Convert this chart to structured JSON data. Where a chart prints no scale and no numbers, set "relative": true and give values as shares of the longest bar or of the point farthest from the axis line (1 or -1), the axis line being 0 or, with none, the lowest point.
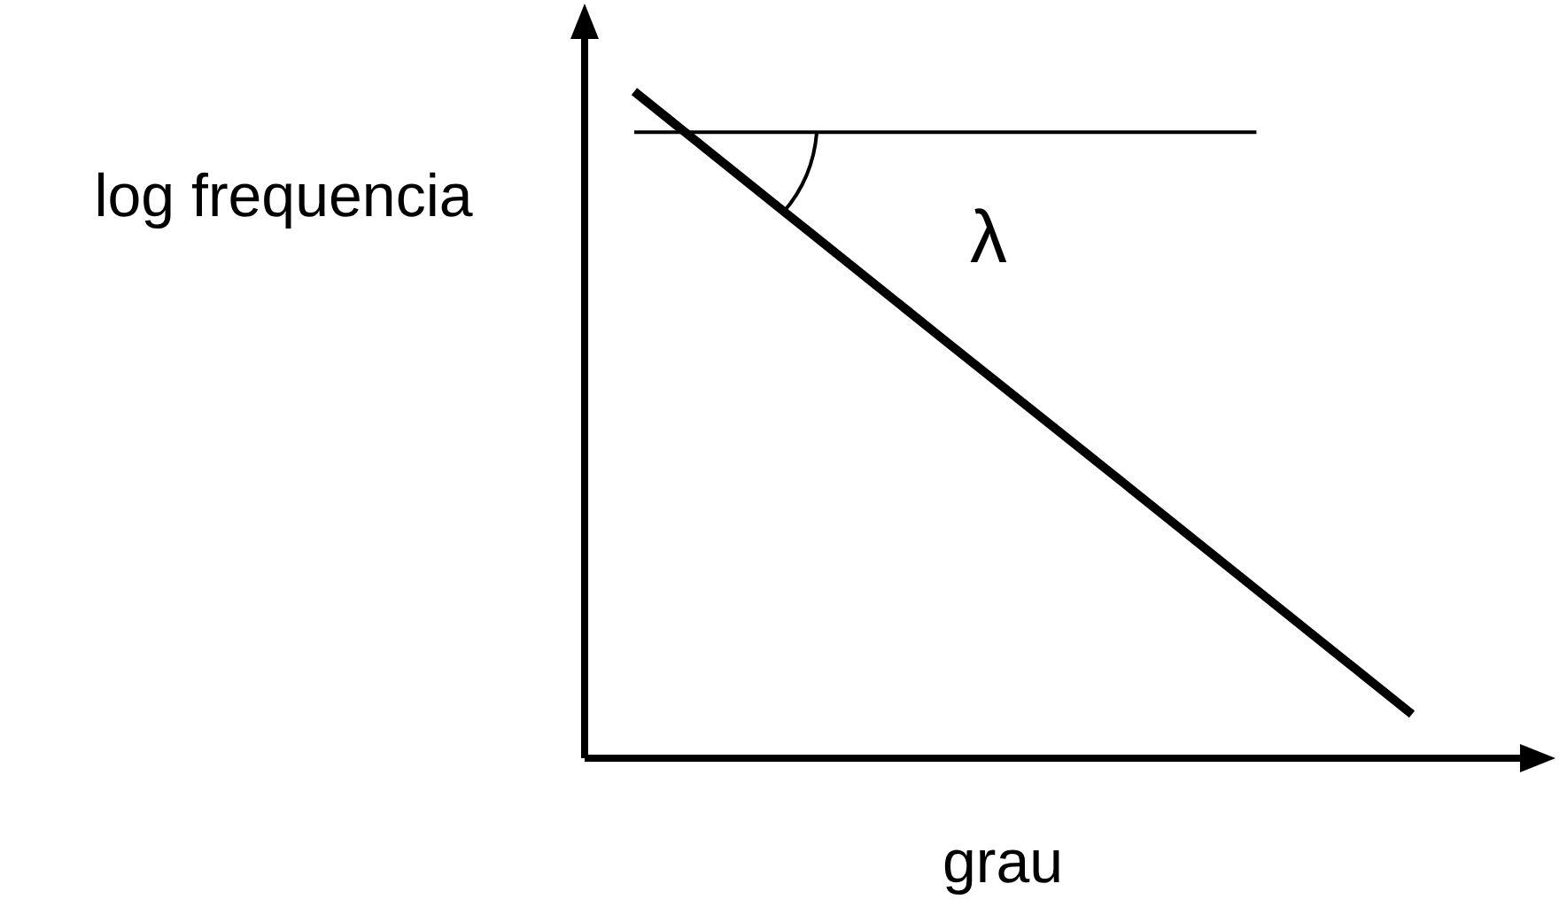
{
  "chart_data": {
    "type": "line",
    "relative": true,
    "xlabel": "grau",
    "ylabel": "log frequencia",
    "categories": [
      null,
      null,
      null,
      null,
      null,
      null
    ],
    "series": [
      {
        "color": "#000000",
        "values": [
          1,
          0.813,
          0.626,
          0.44,
          0.253,
          0.066
        ]
      },
      {
        "color": "#000000",
        "values": [
          0.939,
          0.939,
          0.939,
          0.939,
          0.939,
          null
        ]
      }
    ],
    "annotations": [
      "λ"
    ],
    "grid": false,
    "marker": "none",
    "line_style": "solid"
  }
}
